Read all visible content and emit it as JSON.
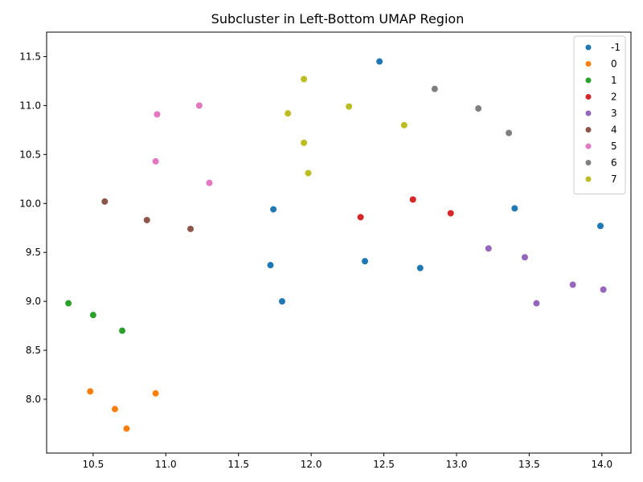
{
  "chart_data": {
    "type": "scatter",
    "title": "Subcluster in Left-Bottom UMAP Region",
    "xlabel": "",
    "ylabel": "",
    "xlim": [
      10.18,
      14.2
    ],
    "ylim": [
      7.45,
      11.75
    ],
    "xticks": [
      "10.5",
      "11.0",
      "11.5",
      "12.0",
      "12.5",
      "13.0",
      "13.5",
      "14.0"
    ],
    "yticks": [
      "8.0",
      "8.5",
      "9.0",
      "9.5",
      "10.0",
      "10.5",
      "11.0",
      "11.5"
    ],
    "grid": false,
    "legend_position": "top-right",
    "series": [
      {
        "name": "-1",
        "color": "#1f77b4",
        "points": [
          [
            12.47,
            11.45
          ],
          [
            11.74,
            9.94
          ],
          [
            13.4,
            9.95
          ],
          [
            13.99,
            9.77
          ],
          [
            12.37,
            9.41
          ],
          [
            11.72,
            9.37
          ],
          [
            12.75,
            9.34
          ],
          [
            11.8,
            9.0
          ]
        ]
      },
      {
        "name": "0",
        "color": "#ff7f0e",
        "points": [
          [
            10.48,
            8.08
          ],
          [
            10.93,
            8.06
          ],
          [
            10.65,
            7.9
          ],
          [
            10.73,
            7.7
          ]
        ]
      },
      {
        "name": "1",
        "color": "#2ca02c",
        "points": [
          [
            10.33,
            8.98
          ],
          [
            10.5,
            8.86
          ],
          [
            10.7,
            8.7
          ]
        ]
      },
      {
        "name": "2",
        "color": "#d62728",
        "points": [
          [
            12.7,
            10.04
          ],
          [
            12.34,
            9.86
          ],
          [
            12.96,
            9.9
          ]
        ]
      },
      {
        "name": "3",
        "color": "#9467bd",
        "points": [
          [
            13.22,
            9.54
          ],
          [
            13.47,
            9.45
          ],
          [
            13.8,
            9.17
          ],
          [
            14.01,
            9.12
          ],
          [
            13.55,
            8.98
          ]
        ]
      },
      {
        "name": "4",
        "color": "#8c564b",
        "points": [
          [
            10.58,
            10.02
          ],
          [
            10.87,
            9.83
          ],
          [
            11.17,
            9.74
          ]
        ]
      },
      {
        "name": "5",
        "color": "#e377c2",
        "points": [
          [
            10.94,
            10.91
          ],
          [
            11.23,
            11.0
          ],
          [
            10.93,
            10.43
          ],
          [
            11.3,
            10.21
          ]
        ]
      },
      {
        "name": "6",
        "color": "#7f7f7f",
        "points": [
          [
            12.85,
            11.17
          ],
          [
            13.15,
            10.97
          ],
          [
            13.36,
            10.72
          ]
        ]
      },
      {
        "name": "7",
        "color": "#bcbd22",
        "points": [
          [
            11.95,
            11.27
          ],
          [
            11.84,
            10.92
          ],
          [
            12.26,
            10.99
          ],
          [
            12.64,
            10.8
          ],
          [
            11.95,
            10.62
          ],
          [
            11.98,
            10.31
          ]
        ]
      }
    ]
  }
}
